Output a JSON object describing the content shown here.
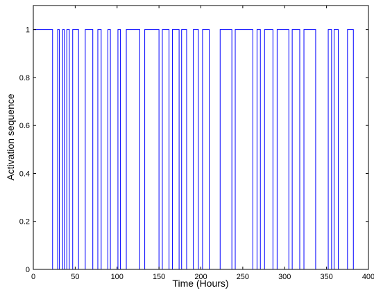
{
  "chart_data": {
    "type": "line",
    "xlabel": "Time (Hours)",
    "ylabel": "Activation sequence",
    "xlim": [
      0,
      400
    ],
    "ylim": [
      0,
      1.1
    ],
    "x_ticks": [
      0,
      50,
      100,
      150,
      200,
      250,
      300,
      350,
      400
    ],
    "y_ticks": [
      0,
      0.2,
      0.4,
      0.6,
      0.8,
      1
    ],
    "grid": false,
    "line_color": "#0000ff",
    "series": [
      {
        "step": true,
        "x": [
          0,
          23,
          23,
          29,
          29,
          31,
          31,
          35,
          35,
          37,
          37,
          40,
          40,
          43,
          43,
          47,
          47,
          54,
          54,
          62,
          62,
          71,
          71,
          77,
          77,
          81,
          81,
          89,
          89,
          92,
          92,
          101,
          101,
          104,
          104,
          111,
          111,
          127,
          127,
          133,
          133,
          150,
          150,
          154,
          154,
          162,
          162,
          166,
          166,
          174,
          174,
          177,
          177,
          183,
          183,
          191,
          191,
          197,
          197,
          202,
          202,
          210,
          210,
          223,
          223,
          237,
          237,
          241,
          241,
          262,
          262,
          267,
          267,
          271,
          271,
          276,
          276,
          286,
          286,
          291,
          291,
          305,
          305,
          309,
          309,
          318,
          318,
          323,
          323,
          337,
          337,
          352,
          352,
          356,
          356,
          359,
          359,
          364,
          364,
          375,
          375,
          382,
          382,
          400
        ],
        "y": [
          1,
          1,
          0,
          0,
          1,
          1,
          0,
          0,
          1,
          1,
          0,
          0,
          1,
          1,
          0,
          0,
          1,
          1,
          0,
          0,
          1,
          1,
          0,
          0,
          1,
          1,
          0,
          0,
          1,
          1,
          0,
          0,
          1,
          1,
          0,
          0,
          1,
          1,
          0,
          0,
          1,
          1,
          0,
          0,
          1,
          1,
          0,
          0,
          1,
          1,
          0,
          0,
          1,
          1,
          0,
          0,
          1,
          1,
          0,
          0,
          1,
          1,
          0,
          0,
          1,
          1,
          0,
          0,
          1,
          1,
          0,
          0,
          1,
          1,
          0,
          0,
          1,
          1,
          0,
          0,
          1,
          1,
          0,
          0,
          1,
          1,
          0,
          0,
          1,
          1,
          0,
          0,
          1,
          1,
          0,
          0,
          1,
          1,
          0,
          0,
          1,
          1,
          0,
          0
        ]
      }
    ]
  }
}
